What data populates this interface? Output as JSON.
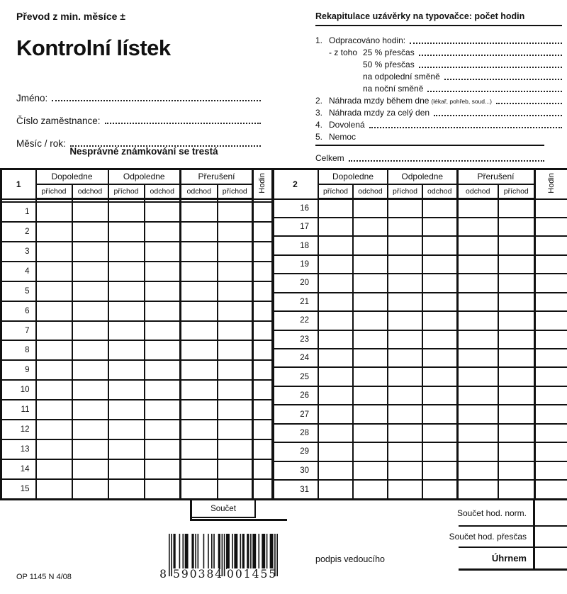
{
  "colors": {
    "ink": "#111111",
    "paper": "#ffffff"
  },
  "header": {
    "carryover_label": "Převod z min. měsíce ±",
    "title": "Kontrolní lístek",
    "fields": [
      {
        "label": "Jméno:"
      },
      {
        "label": "Číslo zaměstnance:"
      },
      {
        "label": "Měsíc / rok:"
      }
    ],
    "warning": "Nesprávné známkování se trestá"
  },
  "recap": {
    "heading": "Rekapitulace uzávěrky na typovačce: počet hodin",
    "rows": [
      {
        "num": "1.",
        "label": "Odpracováno hodin:",
        "dots": true
      },
      {
        "num": "",
        "prefix": "- z toho",
        "label": "25 % přesčas",
        "dots": true
      },
      {
        "num": "",
        "prefix": "",
        "label": "50 % přesčas",
        "dots": true
      },
      {
        "num": "",
        "prefix": "",
        "label": "na odpolední směně",
        "dots": true
      },
      {
        "num": "",
        "prefix": "",
        "label": "na noční směně",
        "dots": true
      },
      {
        "num": "2.",
        "label": "Náhrada mzdy během dne",
        "small": "(lékař, pohřeb, soud...)",
        "dots": true
      },
      {
        "num": "3.",
        "label": "Náhrada mzdy za celý den",
        "dots": true
      },
      {
        "num": "4.",
        "label": "Dovolená",
        "dots": true
      },
      {
        "num": "5.",
        "label": "Nemoc",
        "dots": false
      }
    ],
    "total_label": "Celkem"
  },
  "tables": {
    "group_headers": [
      "Dopoledne",
      "Odpoledne",
      "Přerušení"
    ],
    "sub_headers": [
      "příchod",
      "odchod",
      "příchod",
      "odchod",
      "odchod",
      "příchod"
    ],
    "hours_header": "Hodin",
    "left": {
      "part": "1",
      "days": [
        "",
        "1",
        "2",
        "3",
        "4",
        "5",
        "6",
        "7",
        "8",
        "9",
        "10",
        "11",
        "12",
        "13",
        "14",
        "15"
      ]
    },
    "right": {
      "part": "2",
      "days": [
        "16",
        "17",
        "18",
        "19",
        "20",
        "21",
        "22",
        "23",
        "24",
        "25",
        "26",
        "27",
        "28",
        "29",
        "30",
        "31"
      ]
    }
  },
  "sum_box": {
    "label": "Součet"
  },
  "summary": {
    "rows": [
      {
        "label": "Součet hod. norm.",
        "bold": false
      },
      {
        "label": "Součet hod. přesčas",
        "bold": false
      },
      {
        "label": "Úhrnem",
        "bold": true
      }
    ]
  },
  "signature_label": "podpis vedoucího",
  "barcode": {
    "digits": "8590384001455",
    "groups": [
      "8",
      "590384",
      "001455"
    ],
    "pattern": "10101100010010111000110101000010001001010001101010111001011100101100110101110010011101001110101"
  },
  "footer_code": "OP 1145 N 4/08"
}
